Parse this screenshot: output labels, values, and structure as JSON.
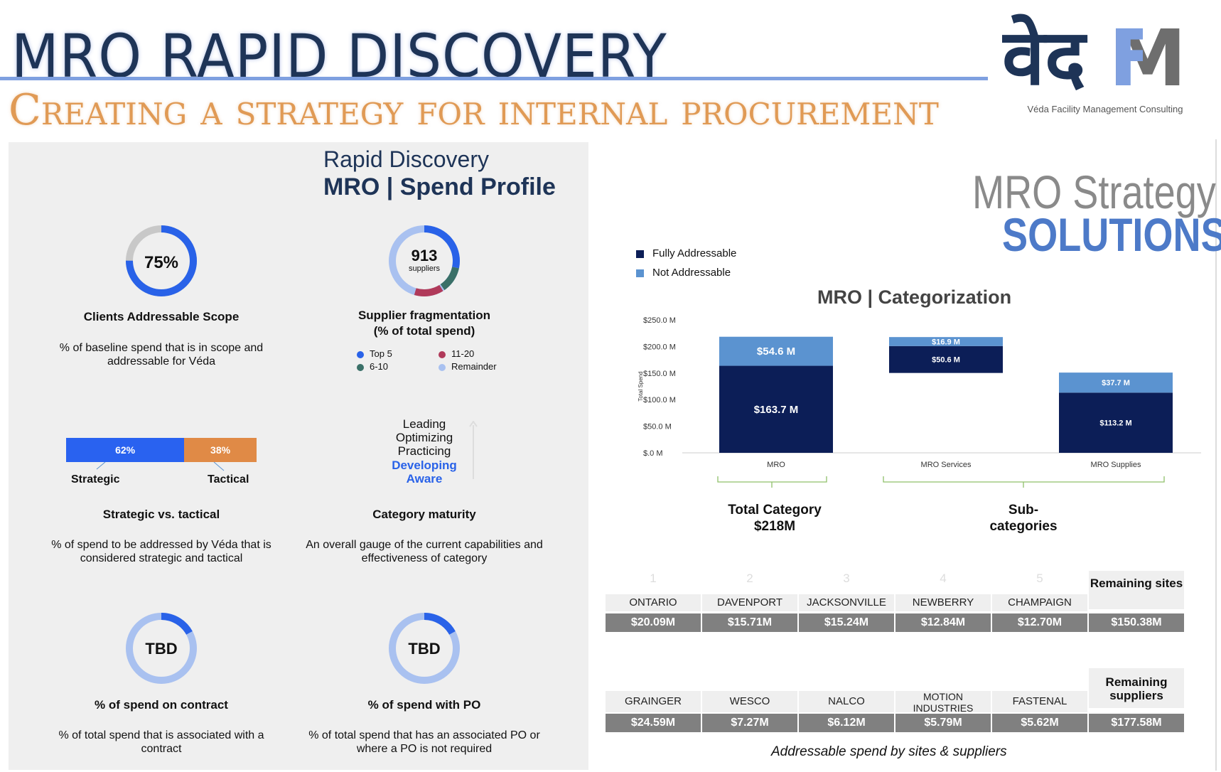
{
  "header": {
    "title": "MRO RAPID DISCOVERY",
    "subtitle": "Creating a strategy for internal procurement",
    "logo_text": "वेदFM",
    "logo_caption": "Véda Facility Management Consulting",
    "colors": {
      "navy": "#1e3457",
      "accent_blue": "#7fa0e0",
      "orange": "#e09a55"
    }
  },
  "spend_profile": {
    "title": "Rapid Discovery",
    "subtitle": "MRO | Spend Profile",
    "addressable_scope": {
      "center": "75%",
      "value_fraction": 0.75,
      "label": "Clients Addressable Scope",
      "desc": "% of baseline spend that is in scope and addressable for Véda"
    },
    "fragmentation": {
      "center_value": "913",
      "center_unit": "suppliers",
      "label_line1": "Supplier fragmentation",
      "label_line2": "(% of total spend)",
      "legend": [
        {
          "name": "Top 5",
          "color": "#2962e8"
        },
        {
          "name": "11-20",
          "color": "#b03a5a"
        },
        {
          "name": "6-10",
          "color": "#3a7068"
        },
        {
          "name": "Remainder",
          "color": "#a9c1f0"
        }
      ]
    },
    "strategic_tactical": {
      "strategic_pct": "62%",
      "tactical_pct": "38%",
      "strategic_fraction": 0.62,
      "strategic_label": "Strategic",
      "tactical_label": "Tactical",
      "label": "Strategic vs. tactical",
      "desc": "% of spend to be addressed by Véda that is considered strategic and tactical",
      "colors": {
        "strategic": "#2962f0",
        "tactical": "#e08a46"
      }
    },
    "maturity": {
      "levels": [
        "Leading",
        "Optimizing",
        "Practicing",
        "Developing",
        "Aware"
      ],
      "highlighted": [
        "Developing",
        "Aware"
      ],
      "label": "Category maturity",
      "desc": "An overall gauge of the current capabilities and effectiveness of category"
    },
    "contract": {
      "center": "TBD",
      "label": "% of spend on contract",
      "desc": "% of total spend that is associated with a contract"
    },
    "po": {
      "center": "TBD",
      "label": "% of spend with PO",
      "desc": "% of total spend that has an associated PO or where a PO is not required"
    }
  },
  "solutions": {
    "title_line1": "MRO Strategy",
    "title_line2": "SOLUTIONS"
  },
  "chart_data": {
    "type": "bar",
    "stacked": true,
    "title": "MRO | Categorization",
    "ylabel": "Total Spend",
    "xlabel": "",
    "categories": [
      "MRO",
      "MRO Services",
      "MRO Supplies"
    ],
    "ylim": [
      0,
      250
    ],
    "yticks": [
      "$.0 M",
      "$50.0 M",
      "$100.0 M",
      "$150.0 M",
      "$200.0 M",
      "$250.0 M"
    ],
    "ytick_values": [
      0,
      50,
      100,
      150,
      200,
      250
    ],
    "legend_position": "top-left",
    "series": [
      {
        "name": "Fully Addressable",
        "color": "#0c1e57",
        "values": [
          163.7,
          50.6,
          113.2
        ],
        "labels": [
          "$163.7 M",
          "$50.6 M",
          "$113.2 M"
        ]
      },
      {
        "name": "Not Addressable",
        "color": "#5b93d0",
        "values": [
          54.6,
          16.9,
          37.7
        ],
        "labels": [
          "$54.6 M",
          "$16.9 M",
          "$37.7 M"
        ]
      }
    ],
    "bases": [
      0,
      150.2,
      0
    ]
  },
  "brackets": {
    "total": {
      "line1": "Total Category",
      "line2": "$218M"
    },
    "sub": {
      "line1": "Sub-",
      "line2": "categories"
    }
  },
  "sites": {
    "numbers": [
      "1",
      "2",
      "3",
      "4",
      "5"
    ],
    "names": [
      "ONTARIO",
      "DAVENPORT",
      "JACKSONVILLE",
      "NEWBERRY",
      "CHAMPAIGN"
    ],
    "values": [
      "$20.09M",
      "$15.71M",
      "$15.24M",
      "$12.84M",
      "$12.70M"
    ],
    "remaining_label": "Remaining sites",
    "remaining_value": "$150.38M"
  },
  "suppliers": {
    "names": [
      "GRAINGER",
      "WESCO",
      "NALCO",
      "MOTION INDUSTRIES",
      "FASTENAL"
    ],
    "values": [
      "$24.59M",
      "$7.27M",
      "$6.12M",
      "$5.79M",
      "$5.62M"
    ],
    "remaining_label": "Remaining suppliers",
    "remaining_value": "$177.58M"
  },
  "table_caption": "Addressable spend by sites & suppliers"
}
